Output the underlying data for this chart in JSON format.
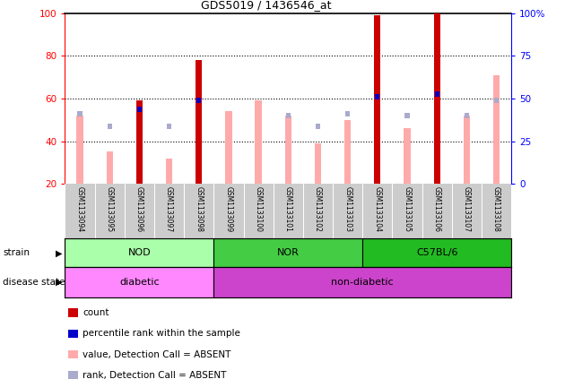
{
  "title": "GDS5019 / 1436546_at",
  "samples": [
    "GSM1133094",
    "GSM1133095",
    "GSM1133096",
    "GSM1133097",
    "GSM1133098",
    "GSM1133099",
    "GSM1133100",
    "GSM1133101",
    "GSM1133102",
    "GSM1133103",
    "GSM1133104",
    "GSM1133105",
    "GSM1133106",
    "GSM1133107",
    "GSM1133108"
  ],
  "count_values": [
    0,
    0,
    59,
    0,
    78,
    0,
    0,
    0,
    0,
    0,
    99,
    0,
    100,
    0,
    0
  ],
  "percentile_rank": [
    null,
    null,
    55,
    null,
    59,
    null,
    null,
    null,
    null,
    null,
    61,
    null,
    62,
    null,
    null
  ],
  "value_absent": [
    52,
    35,
    54,
    32,
    null,
    54,
    59,
    52,
    39,
    50,
    null,
    46,
    null,
    52,
    71
  ],
  "rank_absent": [
    53,
    47,
    null,
    47,
    null,
    null,
    null,
    52,
    47,
    53,
    null,
    52,
    null,
    52,
    59
  ],
  "ylim_left": [
    20,
    100
  ],
  "ylim_right": [
    0,
    100
  ],
  "left_ticks": [
    20,
    40,
    60,
    80,
    100
  ],
  "right_ticks": [
    0,
    25,
    50,
    75,
    100
  ],
  "right_tick_labels": [
    "0",
    "25",
    "50",
    "75",
    "100%"
  ],
  "grid_lines": [
    40,
    60,
    80
  ],
  "color_count": "#cc0000",
  "color_percentile": "#0000cc",
  "color_value_absent": "#ffaaaa",
  "color_rank_absent": "#aaaacc",
  "strain_nod_color": "#aaffaa",
  "strain_nor_color": "#44cc44",
  "strain_c57_color": "#22bb22",
  "disease_diabetic_color": "#ff88ff",
  "disease_nondiabetic_color": "#cc44cc",
  "strains": [
    {
      "label": "NOD",
      "start": 0,
      "end": 5,
      "color": "#aaffaa"
    },
    {
      "label": "NOR",
      "start": 5,
      "end": 10,
      "color": "#44cc44"
    },
    {
      "label": "C57BL/6",
      "start": 10,
      "end": 15,
      "color": "#22bb22"
    }
  ],
  "disease_states": [
    {
      "label": "diabetic",
      "start": 0,
      "end": 5,
      "color": "#ff88ff"
    },
    {
      "label": "non-diabetic",
      "start": 5,
      "end": 15,
      "color": "#cc44cc"
    }
  ],
  "tick_area_color": "#cccccc",
  "legend_items": [
    {
      "color": "#cc0000",
      "label": "count"
    },
    {
      "color": "#0000cc",
      "label": "percentile rank within the sample"
    },
    {
      "color": "#ffaaaa",
      "label": "value, Detection Call = ABSENT"
    },
    {
      "color": "#aaaacc",
      "label": "rank, Detection Call = ABSENT"
    }
  ]
}
